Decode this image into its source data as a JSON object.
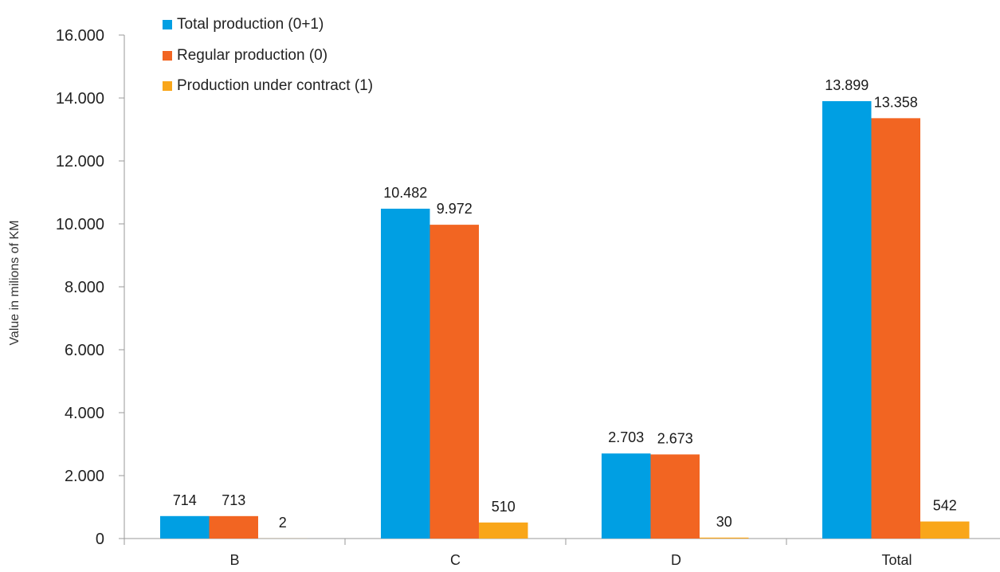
{
  "chart_data": {
    "type": "bar",
    "categories": [
      "B",
      "C",
      "D",
      "Total"
    ],
    "series": [
      {
        "name": "Total production (0+1)",
        "color": "#009fe3",
        "values": [
          714,
          10482,
          2703,
          13899
        ],
        "labels": [
          "714",
          "10.482",
          "2.703",
          "13.899"
        ]
      },
      {
        "name": "Regular production (0)",
        "color": "#f26522",
        "values": [
          713,
          9972,
          2673,
          13358
        ],
        "labels": [
          "713",
          "9.972",
          "2.673",
          "13.358"
        ]
      },
      {
        "name": "Production under contract (1)",
        "color": "#f9a61a",
        "values": [
          2,
          510,
          30,
          542
        ],
        "labels": [
          "2",
          "510",
          "30",
          "542"
        ]
      }
    ],
    "ylabel": "Value in milions of KM",
    "ylim": [
      0,
      16000
    ],
    "yticks": [
      0,
      2000,
      4000,
      6000,
      8000,
      10000,
      12000,
      14000,
      16000
    ],
    "ytick_labels": [
      "0",
      "2.000",
      "4.000",
      "6.000",
      "8.000",
      "10.000",
      "12.000",
      "14.000",
      "16.000"
    ],
    "grid": false,
    "legend_position": "top-left"
  }
}
